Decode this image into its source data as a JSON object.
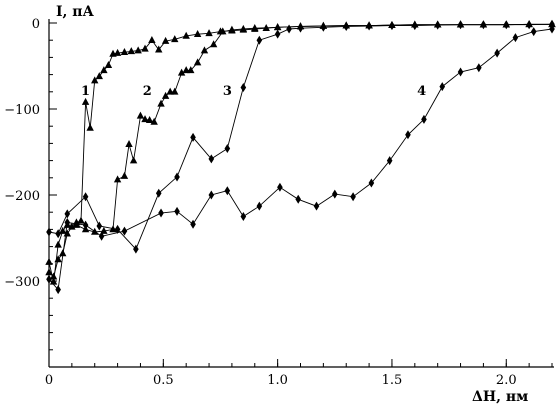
{
  "chart_data": {
    "type": "line",
    "title": "",
    "ylabel": "I, пА",
    "xlabel": "ΔH, нм",
    "xlim": [
      0,
      2.2
    ],
    "ylim": [
      -400,
      0
    ],
    "x_ticks": [
      {
        "value": 0,
        "label": "0"
      },
      {
        "value": 0.5,
        "label": "0.5"
      },
      {
        "value": 1.0,
        "label": "1.0"
      },
      {
        "value": 1.5,
        "label": "1.5"
      },
      {
        "value": 2.0,
        "label": "2.0"
      }
    ],
    "y_ticks": [
      {
        "value": 0,
        "label": "0"
      },
      {
        "value": -100,
        "label": "−100"
      },
      {
        "value": -200,
        "label": "−200"
      },
      {
        "value": -300,
        "label": "−300"
      }
    ],
    "x_minor_step": 0.1,
    "y_minor_step": 20,
    "grid": false,
    "series": [
      {
        "name": "1",
        "marker": "triangle",
        "label_at": [
          0.16,
          -78
        ],
        "points": [
          [
            0,
            -290
          ],
          [
            0.02,
            -295
          ],
          [
            0.04,
            -275
          ],
          [
            0.06,
            -268
          ],
          [
            0.08,
            -245
          ],
          [
            0.1,
            -237
          ],
          [
            0.12,
            -232
          ],
          [
            0.14,
            -230
          ],
          [
            0.16,
            -92
          ],
          [
            0.18,
            -122
          ],
          [
            0.2,
            -67
          ],
          [
            0.22,
            -62
          ],
          [
            0.24,
            -55
          ],
          [
            0.26,
            -49
          ],
          [
            0.28,
            -36
          ],
          [
            0.3,
            -35
          ],
          [
            0.33,
            -34
          ],
          [
            0.36,
            -33
          ],
          [
            0.39,
            -32
          ],
          [
            0.42,
            -30
          ],
          [
            0.45,
            -20
          ],
          [
            0.48,
            -31
          ],
          [
            0.51,
            -21
          ],
          [
            0.55,
            -19
          ],
          [
            0.6,
            -15
          ],
          [
            0.65,
            -13
          ],
          [
            0.7,
            -12
          ],
          [
            0.75,
            -10
          ],
          [
            0.8,
            -9
          ],
          [
            0.85,
            -8
          ],
          [
            0.9,
            -7
          ],
          [
            0.95,
            -6
          ],
          [
            1.0,
            -5
          ],
          [
            1.1,
            -4
          ],
          [
            1.2,
            -3.5
          ],
          [
            1.3,
            -3
          ],
          [
            1.4,
            -3
          ],
          [
            1.5,
            -2.5
          ],
          [
            1.6,
            -2
          ],
          [
            1.7,
            -2
          ],
          [
            1.8,
            -2
          ],
          [
            1.9,
            -2
          ],
          [
            2.0,
            -2
          ],
          [
            2.1,
            -1.5
          ],
          [
            2.2,
            -1.5
          ]
        ]
      },
      {
        "name": "2",
        "marker": "triangle",
        "label_at": [
          0.43,
          -78
        ],
        "points": [
          [
            0,
            -278
          ],
          [
            0.02,
            -301
          ],
          [
            0.04,
            -258
          ],
          [
            0.06,
            -242
          ],
          [
            0.08,
            -235
          ],
          [
            0.12,
            -235
          ],
          [
            0.16,
            -240
          ],
          [
            0.2,
            -243
          ],
          [
            0.24,
            -242
          ],
          [
            0.28,
            -240
          ],
          [
            0.3,
            -182
          ],
          [
            0.33,
            -178
          ],
          [
            0.35,
            -141
          ],
          [
            0.37,
            -160
          ],
          [
            0.4,
            -108
          ],
          [
            0.42,
            -112
          ],
          [
            0.44,
            -113
          ],
          [
            0.46,
            -115
          ],
          [
            0.49,
            -94
          ],
          [
            0.51,
            -85
          ],
          [
            0.53,
            -80
          ],
          [
            0.55,
            -80
          ],
          [
            0.58,
            -58
          ],
          [
            0.6,
            -55
          ],
          [
            0.62,
            -55
          ],
          [
            0.65,
            -46
          ],
          [
            0.68,
            -32
          ],
          [
            0.72,
            -25
          ],
          [
            0.76,
            -10
          ],
          [
            0.8,
            -8
          ],
          [
            0.85,
            -7
          ],
          [
            0.9,
            -6
          ],
          [
            1.0,
            -5
          ],
          [
            1.1,
            -4
          ],
          [
            1.2,
            -3.5
          ],
          [
            1.3,
            -3
          ],
          [
            1.4,
            -3
          ],
          [
            1.5,
            -2.5
          ],
          [
            1.6,
            -2
          ],
          [
            1.7,
            -2
          ],
          [
            1.8,
            -2
          ],
          [
            1.9,
            -2
          ],
          [
            2.0,
            -2
          ],
          [
            2.1,
            -1.5
          ],
          [
            2.2,
            -1.5
          ]
        ]
      },
      {
        "name": "3",
        "marker": "diamond",
        "label_at": [
          0.78,
          -78
        ],
        "points": [
          [
            0,
            -243
          ],
          [
            0.04,
            -245
          ],
          [
            0.08,
            -222
          ],
          [
            0.16,
            -202
          ],
          [
            0.22,
            -236
          ],
          [
            0.3,
            -240
          ],
          [
            0.38,
            -263
          ],
          [
            0.48,
            -198
          ],
          [
            0.56,
            -179
          ],
          [
            0.63,
            -133
          ],
          [
            0.71,
            -158
          ],
          [
            0.78,
            -146
          ],
          [
            0.85,
            -75
          ],
          [
            0.92,
            -20
          ],
          [
            1.0,
            -13
          ],
          [
            1.05,
            -7
          ],
          [
            1.1,
            -6
          ],
          [
            1.2,
            -5
          ],
          [
            1.3,
            -4
          ],
          [
            1.4,
            -3.5
          ],
          [
            1.5,
            -3
          ],
          [
            1.6,
            -3
          ],
          [
            1.7,
            -2.5
          ],
          [
            1.8,
            -2
          ],
          [
            1.9,
            -2
          ],
          [
            2.0,
            -2
          ],
          [
            2.1,
            -2
          ],
          [
            2.2,
            -1.5
          ]
        ]
      },
      {
        "name": "4",
        "marker": "diamond",
        "label_at": [
          1.63,
          -78
        ],
        "points": [
          [
            0,
            -298
          ],
          [
            0.04,
            -310
          ],
          [
            0.08,
            -232
          ],
          [
            0.16,
            -235
          ],
          [
            0.23,
            -248
          ],
          [
            0.33,
            -242
          ],
          [
            0.49,
            -221
          ],
          [
            0.56,
            -219
          ],
          [
            0.63,
            -234
          ],
          [
            0.71,
            -200
          ],
          [
            0.78,
            -195
          ],
          [
            0.85,
            -225
          ],
          [
            0.92,
            -213
          ],
          [
            1.01,
            -191
          ],
          [
            1.09,
            -205
          ],
          [
            1.17,
            -213
          ],
          [
            1.25,
            -199
          ],
          [
            1.33,
            -202
          ],
          [
            1.41,
            -186
          ],
          [
            1.49,
            -160
          ],
          [
            1.57,
            -130
          ],
          [
            1.64,
            -112
          ],
          [
            1.72,
            -74
          ],
          [
            1.8,
            -57
          ],
          [
            1.88,
            -52
          ],
          [
            1.96,
            -35
          ],
          [
            2.04,
            -17
          ],
          [
            2.12,
            -10
          ],
          [
            2.2,
            -7
          ]
        ]
      }
    ]
  }
}
